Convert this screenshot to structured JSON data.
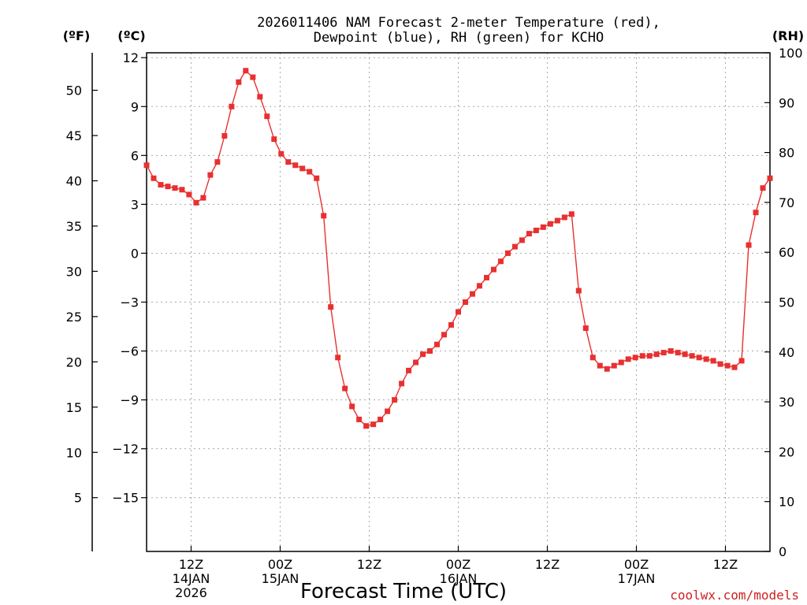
{
  "chart_data": {
    "type": "line",
    "title_lines": [
      "2026011406 NAM Forecast 2-meter Temperature (red),",
      "Dewpoint (blue), RH (green) for KCHO"
    ],
    "xlabel": "Forecast Time (UTC)",
    "credit": "coolwx.com/models",
    "unit_labels": {
      "f": "(ºF)",
      "c": "(ºC)",
      "rh": "(RH)"
    },
    "x_start_hour": 6,
    "x_end_hour": 90,
    "xlim": [
      "2026-01-14 06Z",
      "2026-01-17 18Z"
    ],
    "x_ticks": [
      {
        "hour": 12,
        "lines": [
          "12Z",
          "14JAN",
          "2026"
        ]
      },
      {
        "hour": 24,
        "lines": [
          "00Z",
          "15JAN"
        ]
      },
      {
        "hour": 36,
        "lines": [
          "12Z"
        ]
      },
      {
        "hour": 48,
        "lines": [
          "00Z",
          "16JAN"
        ]
      },
      {
        "hour": 60,
        "lines": [
          "12Z"
        ]
      },
      {
        "hour": 72,
        "lines": [
          "00Z",
          "17JAN"
        ]
      },
      {
        "hour": 84,
        "lines": [
          "12Z"
        ]
      }
    ],
    "celsius_axis": {
      "ylim": [
        -18.3,
        12.3
      ],
      "ticks": [
        12,
        9,
        6,
        3,
        0,
        -3,
        -6,
        -9,
        -12,
        -15
      ]
    },
    "fahrenheit_axis": {
      "ticks": [
        50,
        45,
        40,
        35,
        30,
        25,
        20,
        15,
        10,
        5
      ]
    },
    "rh_axis": {
      "ylim": [
        0,
        100
      ],
      "ticks": [
        100,
        90,
        80,
        70,
        60,
        50,
        40,
        30,
        20,
        10,
        0
      ]
    },
    "grid": true,
    "series": [
      {
        "key": "temperature",
        "axis": "celsius",
        "color": "#e83030",
        "marker": "filled-square",
        "values": [
          5.4,
          4.6,
          4.2,
          4.1,
          4.0,
          3.9,
          3.6,
          3.1,
          3.4,
          4.8,
          5.6,
          7.2,
          9.0,
          10.5,
          11.2,
          10.8,
          9.6,
          8.4,
          7.0,
          6.1,
          5.6,
          5.4,
          5.2,
          5.0,
          4.6,
          2.3,
          -3.3,
          -6.4,
          -8.3,
          -9.4,
          -10.2,
          -10.6,
          -10.5,
          -10.2,
          -9.7,
          -9.0,
          -8.0,
          -7.2,
          -6.7,
          -6.2,
          -6.0,
          -5.6,
          -5.0,
          -4.4,
          -3.6,
          -3.0,
          -2.5,
          -2.0,
          -1.5,
          -1.0,
          -0.5,
          0.0,
          0.4,
          0.8,
          1.2,
          1.4,
          1.6,
          1.8,
          2.0,
          2.2,
          2.4,
          -2.3,
          -4.6,
          -6.4,
          -6.9,
          -7.1,
          -6.9,
          -6.7,
          -6.5,
          -6.4,
          -6.3,
          -6.3,
          -6.2,
          -6.1,
          -6.0,
          -6.1,
          -6.2,
          -6.3,
          -6.4,
          -6.5,
          -6.6,
          -6.8,
          -6.9,
          -7.0,
          -6.6,
          0.5,
          2.5,
          4.0,
          4.6
        ]
      }
    ]
  }
}
